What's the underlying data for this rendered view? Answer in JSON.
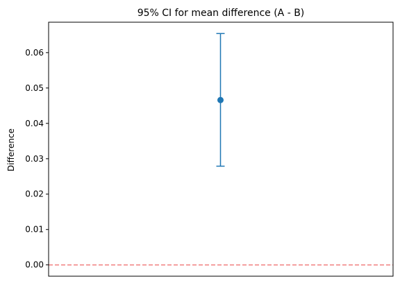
{
  "chart_data": {
    "type": "errorbar",
    "title": "95% CI for mean difference (A - B)",
    "xlabel": "",
    "ylabel": "Difference",
    "ylim": [
      -0.0032,
      0.0686
    ],
    "yticks": [
      0.0,
      0.01,
      0.02,
      0.03,
      0.04,
      0.05,
      0.06
    ],
    "ytick_labels": [
      "0.00",
      "0.01",
      "0.02",
      "0.03",
      "0.04",
      "0.05",
      "0.06"
    ],
    "xticks": [],
    "point": {
      "estimate": 0.0466,
      "lower": 0.0279,
      "upper": 0.0654
    },
    "reference_line": {
      "y": 0.0,
      "style": "dashed"
    },
    "grid": false,
    "colors": {
      "series": "#1f77b4",
      "reference_line": "#f08080",
      "axes": "#000000"
    }
  }
}
